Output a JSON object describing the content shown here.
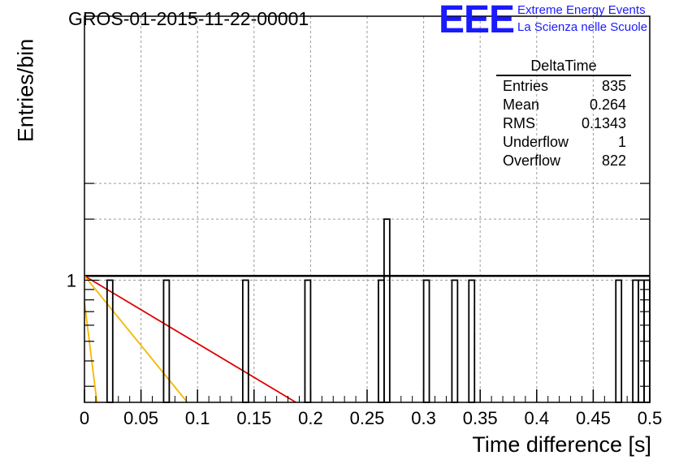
{
  "title": "GROS-01-2015-11-22-00001",
  "logo": {
    "text": "EEE",
    "line1": "Extreme Energy Events",
    "line2": "La Scienza nelle Scuole"
  },
  "colors": {
    "hist": "#000000",
    "fit_flat": "#000000",
    "fit_red": "#e00000",
    "fit_yellow": "#f5b800",
    "grid": "#9a9a9a",
    "logo": "#1a1aff"
  },
  "stats": {
    "title": "DeltaTime",
    "rows": [
      {
        "label": "Entries",
        "value": "835"
      },
      {
        "label": "Mean",
        "value": "0.264"
      },
      {
        "label": "RMS",
        "value": "0.1343"
      },
      {
        "label": "Underflow",
        "value": "1"
      },
      {
        "label": "Overflow",
        "value": "822"
      }
    ]
  },
  "chart_data": {
    "type": "histogram",
    "log_y": true,
    "grid": true,
    "xlabel": "Time difference [s]",
    "ylabel": "Entries/bin",
    "xlim": [
      0,
      0.5
    ],
    "ylim": [
      0.25,
      20
    ],
    "x_ticks": [
      "0",
      "0.05",
      "0.1",
      "0.15",
      "0.2",
      "0.25",
      "0.3",
      "0.35",
      "0.4",
      "0.45",
      "0.5"
    ],
    "y_tick_labels": [
      {
        "value": 1,
        "label": "1"
      }
    ],
    "bin_width": 0.005,
    "bins": [
      {
        "x": 0.02,
        "count": 1
      },
      {
        "x": 0.07,
        "count": 1
      },
      {
        "x": 0.14,
        "count": 1
      },
      {
        "x": 0.195,
        "count": 1
      },
      {
        "x": 0.26,
        "count": 1
      },
      {
        "x": 0.265,
        "count": 2
      },
      {
        "x": 0.3,
        "count": 1
      },
      {
        "x": 0.325,
        "count": 1
      },
      {
        "x": 0.34,
        "count": 1
      },
      {
        "x": 0.47,
        "count": 1
      },
      {
        "x": 0.485,
        "count": 1
      },
      {
        "x": 0.49,
        "count": 1
      },
      {
        "x": 0.495,
        "count": 1
      }
    ],
    "fit_lines": [
      {
        "color": "black",
        "points": [
          [
            0,
            1.05
          ],
          [
            0.5,
            1.05
          ]
        ]
      },
      {
        "color": "red",
        "points": [
          [
            0,
            1.05
          ],
          [
            0.187,
            0.25
          ]
        ]
      },
      {
        "color": "yellow",
        "points": [
          [
            0,
            1.05
          ],
          [
            0.091,
            0.25
          ]
        ]
      },
      {
        "color": "yellow",
        "points": [
          [
            0,
            0.78
          ],
          [
            0.011,
            0.25
          ]
        ]
      }
    ]
  }
}
